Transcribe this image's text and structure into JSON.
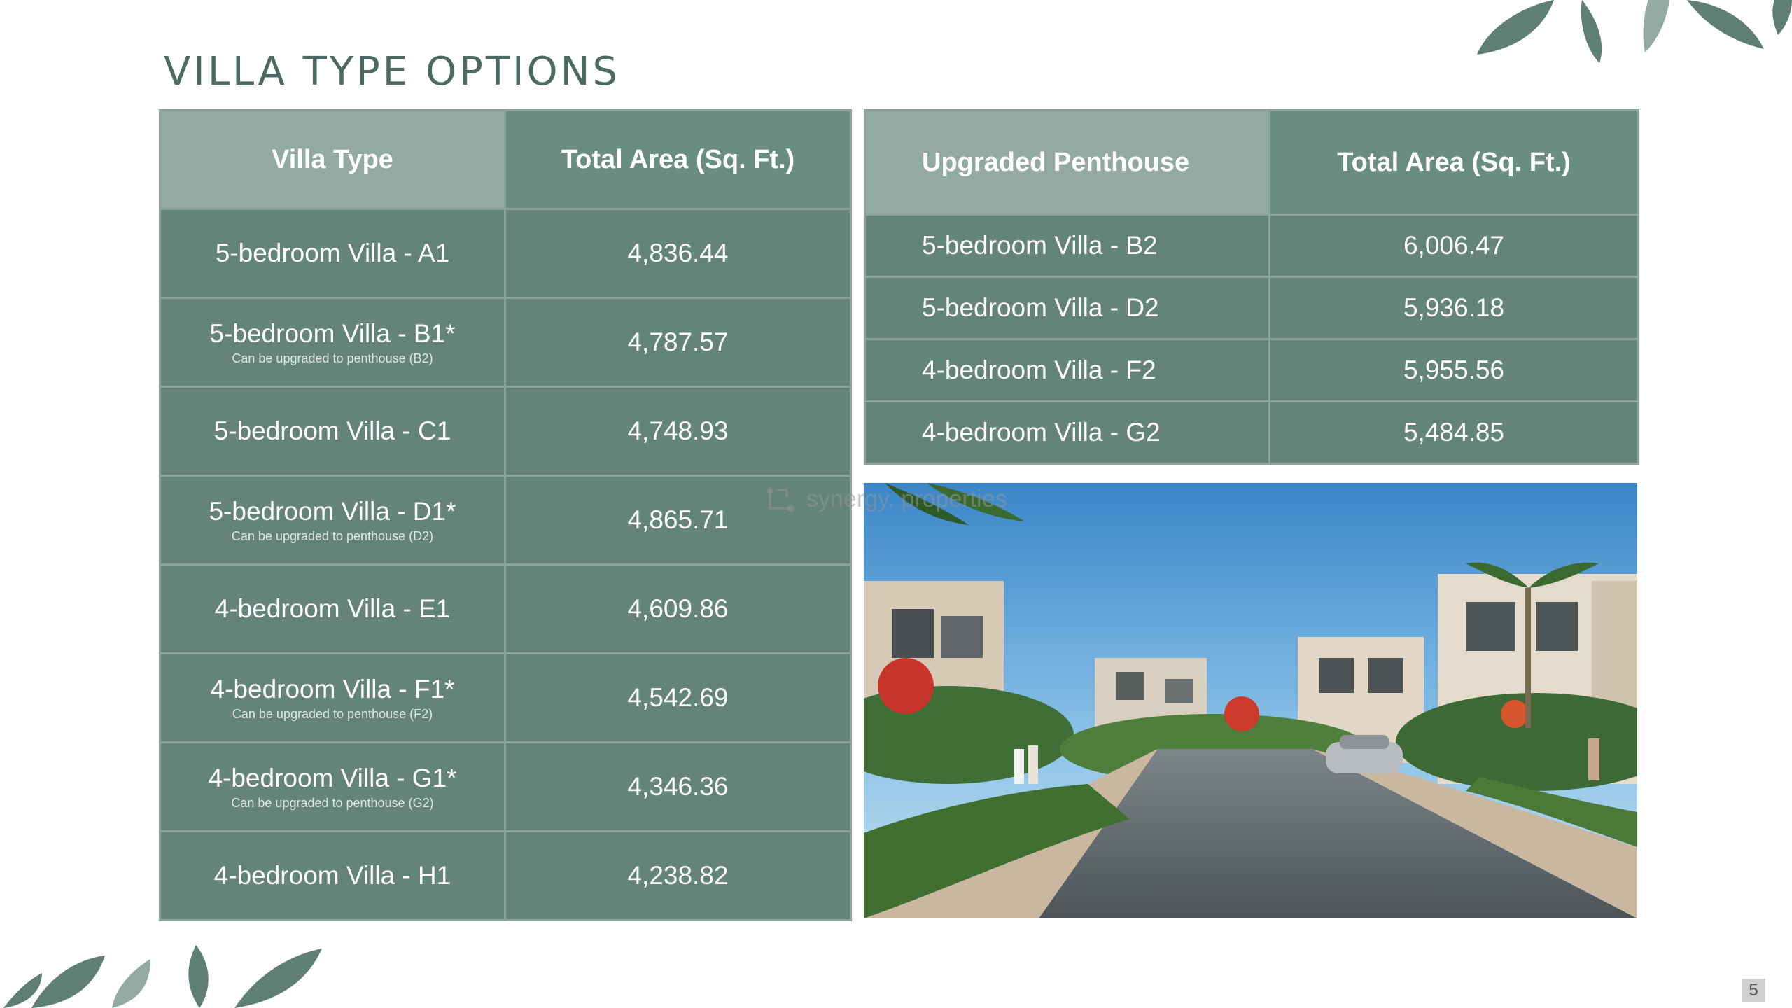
{
  "title": "VILLA TYPE OPTIONS",
  "table1": {
    "headers": [
      "Villa Type",
      "Total Area (Sq. Ft.)"
    ],
    "rows": [
      {
        "type": "5-bedroom Villa - A1",
        "note": "",
        "area": "4,836.44"
      },
      {
        "type": "5-bedroom Villa - B1*",
        "note": "Can be upgraded to penthouse (B2)",
        "area": "4,787.57"
      },
      {
        "type": "5-bedroom Villa - C1",
        "note": "",
        "area": "4,748.93"
      },
      {
        "type": "5-bedroom Villa - D1*",
        "note": "Can be upgraded to penthouse (D2)",
        "area": "4,865.71"
      },
      {
        "type": "4-bedroom Villa - E1",
        "note": "",
        "area": "4,609.86"
      },
      {
        "type": "4-bedroom Villa - F1*",
        "note": "Can be upgraded to penthouse (F2)",
        "area": "4,542.69"
      },
      {
        "type": "4-bedroom Villa - G1*",
        "note": "Can be upgraded to penthouse (G2)",
        "area": "4,346.36"
      },
      {
        "type": "4-bedroom Villa - H1",
        "note": "",
        "area": "4,238.82"
      }
    ]
  },
  "table2": {
    "headers": [
      "Upgraded Penthouse",
      "Total Area (Sq. Ft.)"
    ],
    "rows": [
      {
        "type": "5-bedroom Villa - B2",
        "area": "6,006.47"
      },
      {
        "type": "5-bedroom Villa - D2",
        "area": "5,936.18"
      },
      {
        "type": "4-bedroom Villa - F2",
        "area": "5,955.56"
      },
      {
        "type": "4-bedroom Villa - G2",
        "area": "5,484.85"
      }
    ]
  },
  "watermark": "synergy. properties",
  "page_number": "5",
  "colors": {
    "title": "#4a6a63",
    "header_light": "#93a9a4",
    "header_dark": "#6a8d83",
    "cell": "#648479",
    "leaf": "#5f7f76"
  }
}
